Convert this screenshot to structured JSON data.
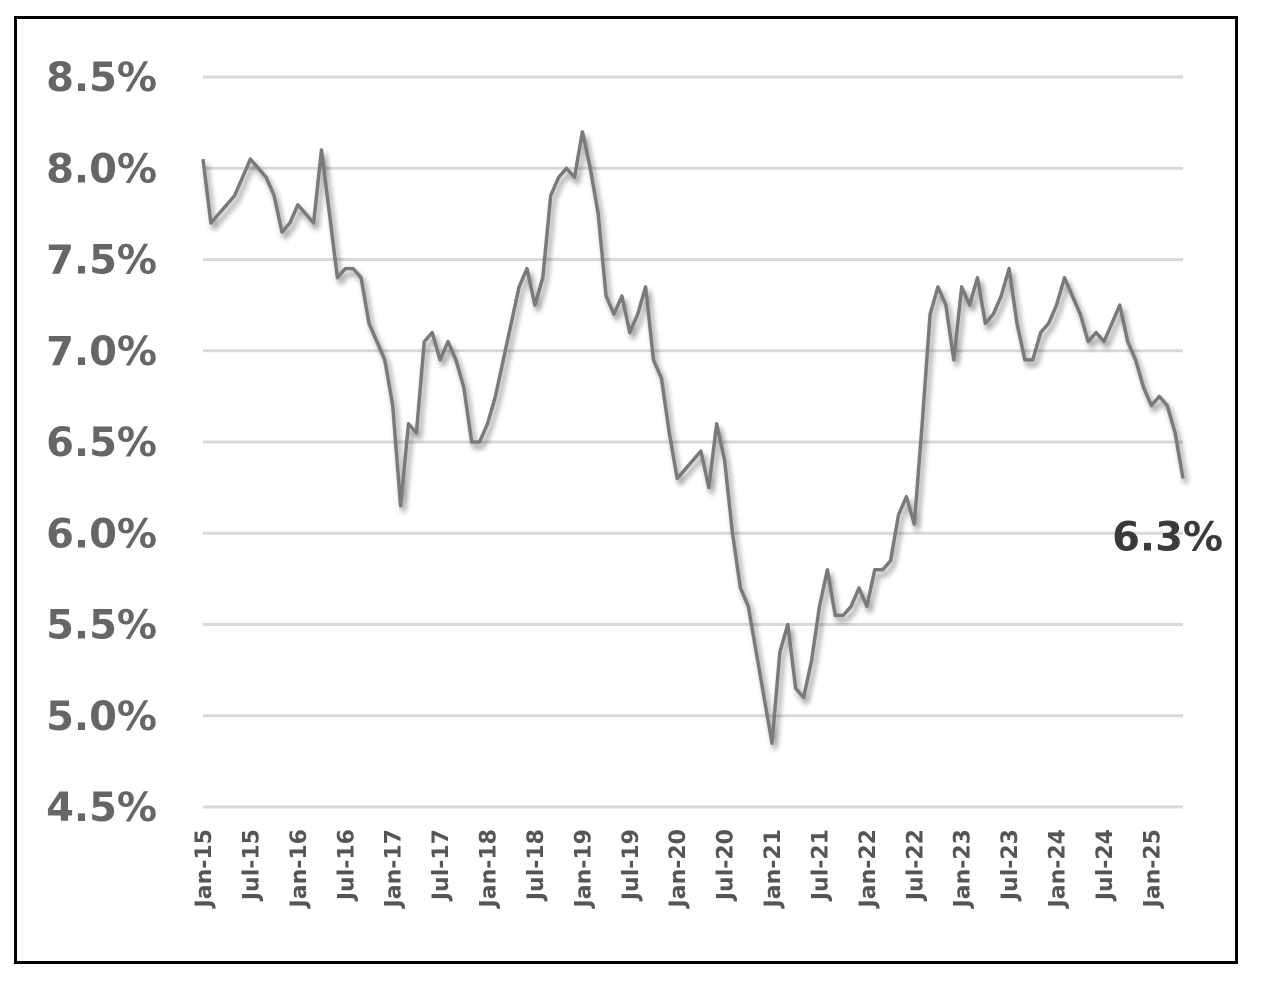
{
  "chart_data": {
    "type": "line",
    "title": "",
    "xlabel": "",
    "ylabel": "",
    "ylim": [
      4.5,
      8.5
    ],
    "y_unit": "%",
    "yticks": [
      "8.5%",
      "8.0%",
      "7.5%",
      "7.0%",
      "6.5%",
      "6.0%",
      "5.5%",
      "5.0%",
      "4.5%"
    ],
    "xticks": [
      "Jan-15",
      "Jul-15",
      "Jan-16",
      "Jul-16",
      "Jan-17",
      "Jul-17",
      "Jan-18",
      "Jul-18",
      "Jan-19",
      "Jul-19",
      "Jan-20",
      "Jul-20",
      "Jan-21",
      "Jul-21",
      "Jan-22",
      "Jul-22",
      "Jan-23",
      "Jul-23",
      "Jan-24",
      "Jul-24",
      "Jan-25"
    ],
    "grid": true,
    "line_color": "#7a7a7a",
    "grid_color": "#d9d9d9",
    "end_label": "6.3%",
    "series": [
      {
        "x": [
          "2015-01",
          "2015-02",
          "2015-03",
          "2015-04",
          "2015-05",
          "2015-06",
          "2015-07",
          "2015-08",
          "2015-09",
          "2015-10",
          "2015-11",
          "2015-12",
          "2016-01",
          "2016-02",
          "2016-03",
          "2016-04",
          "2016-05",
          "2016-06",
          "2016-07",
          "2016-08",
          "2016-09",
          "2016-10",
          "2016-11",
          "2016-12",
          "2017-01",
          "2017-02",
          "2017-03",
          "2017-04",
          "2017-05",
          "2017-06",
          "2017-07",
          "2017-08",
          "2017-09",
          "2017-10",
          "2017-11",
          "2017-12",
          "2018-01",
          "2018-02",
          "2018-03",
          "2018-04",
          "2018-05",
          "2018-06",
          "2018-07",
          "2018-08",
          "2018-09",
          "2018-10",
          "2018-11",
          "2018-12",
          "2019-01",
          "2019-02",
          "2019-03",
          "2019-04",
          "2019-05",
          "2019-06",
          "2019-07",
          "2019-08",
          "2019-09",
          "2019-10",
          "2019-11",
          "2019-12",
          "2020-01",
          "2020-02",
          "2020-03",
          "2020-04",
          "2020-05",
          "2020-06",
          "2020-07",
          "2020-08",
          "2020-09",
          "2020-10",
          "2020-11",
          "2020-12",
          "2021-01",
          "2021-02",
          "2021-03",
          "2021-04",
          "2021-05",
          "2021-06",
          "2021-07",
          "2021-08",
          "2021-09",
          "2021-10",
          "2021-11",
          "2021-12",
          "2022-01",
          "2022-02",
          "2022-03",
          "2022-04",
          "2022-05",
          "2022-06",
          "2022-07",
          "2022-08",
          "2022-09",
          "2022-10",
          "2022-11",
          "2022-12",
          "2023-01",
          "2023-02",
          "2023-03",
          "2023-04",
          "2023-05",
          "2023-06",
          "2023-07",
          "2023-08",
          "2023-09",
          "2023-10",
          "2023-11",
          "2023-12",
          "2024-01",
          "2024-02",
          "2024-03",
          "2024-04",
          "2024-05",
          "2024-06",
          "2024-07",
          "2024-08",
          "2024-09",
          "2024-10",
          "2024-11",
          "2024-12",
          "2025-01",
          "2025-02",
          "2025-03",
          "2025-04",
          "2025-05"
        ],
        "values": [
          8.05,
          7.7,
          7.75,
          7.8,
          7.85,
          7.95,
          8.05,
          8.0,
          7.95,
          7.85,
          7.65,
          7.7,
          7.8,
          7.75,
          7.7,
          8.1,
          7.75,
          7.4,
          7.45,
          7.45,
          7.4,
          7.15,
          7.05,
          6.95,
          6.7,
          6.15,
          6.6,
          6.55,
          7.05,
          7.1,
          6.95,
          7.05,
          6.95,
          6.8,
          6.5,
          6.5,
          6.6,
          6.75,
          6.95,
          7.15,
          7.35,
          7.45,
          7.25,
          7.4,
          7.85,
          7.95,
          8.0,
          7.95,
          8.2,
          8.0,
          7.75,
          7.3,
          7.2,
          7.3,
          7.1,
          7.2,
          7.35,
          6.95,
          6.85,
          6.55,
          6.3,
          6.35,
          6.4,
          6.45,
          6.25,
          6.6,
          6.4,
          6.0,
          5.7,
          5.6,
          5.35,
          5.1,
          4.85,
          5.35,
          5.5,
          5.15,
          5.1,
          5.3,
          5.6,
          5.8,
          5.55,
          5.55,
          5.6,
          5.7,
          5.6,
          5.8,
          5.8,
          5.85,
          6.1,
          6.2,
          6.05,
          6.6,
          7.2,
          7.35,
          7.25,
          6.95,
          7.35,
          7.25,
          7.4,
          7.15,
          7.2,
          7.3,
          7.45,
          7.15,
          6.95,
          6.95,
          7.1,
          7.15,
          7.25,
          7.4,
          7.3,
          7.2,
          7.05,
          7.1,
          7.05,
          7.15,
          7.25,
          7.05,
          6.95,
          6.8,
          6.7,
          6.75,
          6.7,
          6.55,
          6.3
        ]
      }
    ]
  }
}
